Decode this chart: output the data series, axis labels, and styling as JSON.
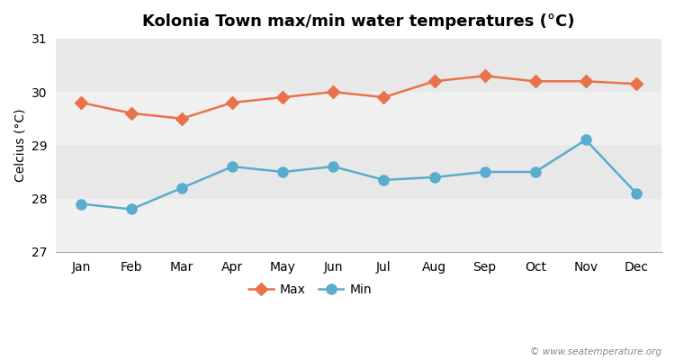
{
  "title": "Kolonia Town max/min water temperatures (°C)",
  "ylabel": "Celcius (°C)",
  "months": [
    "Jan",
    "Feb",
    "Mar",
    "Apr",
    "May",
    "Jun",
    "Jul",
    "Aug",
    "Sep",
    "Oct",
    "Nov",
    "Dec"
  ],
  "max_temps": [
    29.8,
    29.6,
    29.5,
    29.8,
    29.9,
    30.0,
    29.9,
    30.2,
    30.3,
    30.2,
    30.2,
    30.15
  ],
  "min_temps": [
    27.9,
    27.8,
    28.2,
    28.6,
    28.5,
    28.6,
    28.35,
    28.4,
    28.5,
    28.5,
    29.1,
    28.1
  ],
  "ylim": [
    27,
    31
  ],
  "yticks": [
    27,
    28,
    29,
    30,
    31
  ],
  "max_color": "#e8734a",
  "min_color": "#5aaccc",
  "fig_bg_color": "#ffffff",
  "plot_bg_color": "#f5f5f5",
  "band_dark": "#e8e8e8",
  "band_light": "#f0f0f0",
  "watermark": "© www.seatemperature.org",
  "legend_max": "Max",
  "legend_min": "Min",
  "title_fontsize": 13,
  "label_fontsize": 10,
  "tick_fontsize": 10,
  "marker_max": "D",
  "marker_min": "o",
  "linewidth": 1.8,
  "markersize_max": 7,
  "markersize_min": 8
}
